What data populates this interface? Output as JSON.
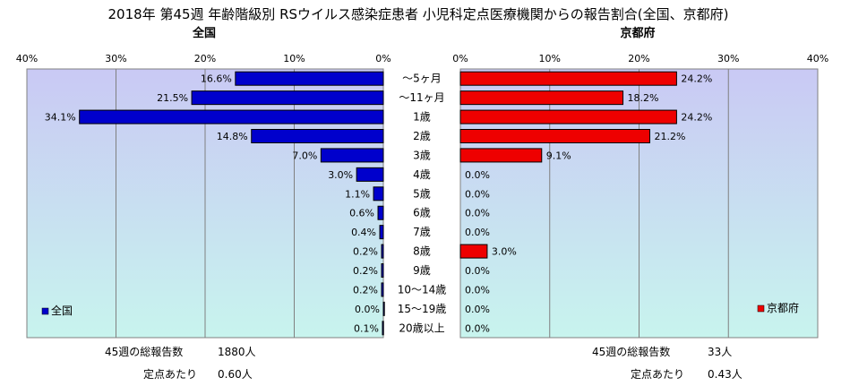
{
  "title": "2018年 第45週 年齢階級別 RSウイルス感染症患者 小児科定点医療機関からの報告割合(全国、京都府)",
  "chart_data": [
    {
      "type": "bar",
      "orientation": "horizontal",
      "direction": "right-to-left",
      "title": "全国",
      "xlim": [
        0,
        40
      ],
      "ticks": [
        "40%",
        "30%",
        "20%",
        "10%",
        "0%"
      ],
      "tick_values": [
        40,
        30,
        20,
        10,
        0
      ],
      "grid": true,
      "legend": "bottom-left",
      "categories": [
        "～5ヶ月",
        "～11ヶ月",
        "1歳",
        "2歳",
        "3歳",
        "4歳",
        "5歳",
        "6歳",
        "7歳",
        "8歳",
        "9歳",
        "10～14歳",
        "15～19歳",
        "20歳以上"
      ],
      "series": [
        {
          "name": "全国",
          "color": "#0000cc",
          "values": [
            16.6,
            21.5,
            34.1,
            14.8,
            7.0,
            3.0,
            1.1,
            0.6,
            0.4,
            0.2,
            0.2,
            0.2,
            0.0,
            0.1
          ],
          "labels": [
            "16.6%",
            "21.5%",
            "34.1%",
            "14.8%",
            "7.0%",
            "3.0%",
            "1.1%",
            "0.6%",
            "0.4%",
            "0.2%",
            "0.2%",
            "0.2%",
            "0.0%",
            "0.1%"
          ]
        }
      ]
    },
    {
      "type": "bar",
      "orientation": "horizontal",
      "direction": "left-to-right",
      "title": "京都府",
      "xlim": [
        0,
        40
      ],
      "ticks": [
        "0%",
        "10%",
        "20%",
        "30%",
        "40%"
      ],
      "tick_values": [
        0,
        10,
        20,
        30,
        40
      ],
      "grid": true,
      "legend": "bottom-right",
      "categories": [
        "～5ヶ月",
        "～11ヶ月",
        "1歳",
        "2歳",
        "3歳",
        "4歳",
        "5歳",
        "6歳",
        "7歳",
        "8歳",
        "9歳",
        "10～14歳",
        "15～19歳",
        "20歳以上"
      ],
      "series": [
        {
          "name": "京都府",
          "color": "#ee0000",
          "values": [
            24.2,
            18.2,
            24.2,
            21.2,
            9.1,
            0.0,
            0.0,
            0.0,
            0.0,
            3.0,
            0.0,
            0.0,
            0.0,
            0.0
          ],
          "labels": [
            "24.2%",
            "18.2%",
            "24.2%",
            "21.2%",
            "9.1%",
            "0.0%",
            "0.0%",
            "0.0%",
            "0.0%",
            "3.0%",
            "0.0%",
            "0.0%",
            "0.0%",
            "0.0%"
          ]
        }
      ]
    }
  ],
  "summary": {
    "national": {
      "reports_label": "45週の総報告数",
      "reports_value": "1880人",
      "per_label": "定点あたり",
      "per_value": "0.60人"
    },
    "kyoto": {
      "reports_label": "45週の総報告数",
      "reports_value": "33人",
      "per_label": "定点あたり",
      "per_value": "0.43人"
    }
  },
  "colors": {
    "plot_bg_top": "#c9c9f4",
    "plot_bg_bottom": "#c8f4ee",
    "grid": "#808080"
  }
}
